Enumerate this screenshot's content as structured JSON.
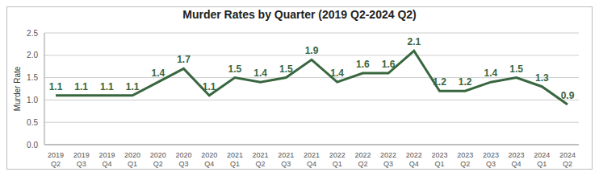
{
  "chart_data": {
    "type": "line",
    "title": "Murder Rates by Quarter (2019 Q2-2024 Q2)",
    "y_label": "Murder Rate",
    "categories": [
      "2019 Q2",
      "2019 Q3",
      "2019 Q4",
      "2020 Q1",
      "2020 Q2",
      "2020 Q3",
      "2020 Q4",
      "2021 Q1",
      "2021 Q2",
      "2021 Q3",
      "2021 Q4",
      "2022 Q1",
      "2022 Q2",
      "2022 Q3",
      "2022 Q4",
      "2023 Q1",
      "2023 Q2",
      "2023 Q3",
      "2023 Q4",
      "2024 Q1",
      "2024 Q2"
    ],
    "values": [
      1.1,
      1.1,
      1.1,
      1.1,
      1.4,
      1.7,
      1.1,
      1.5,
      1.4,
      1.5,
      1.9,
      1.4,
      1.6,
      1.6,
      2.1,
      1.2,
      1.2,
      1.4,
      1.5,
      1.3,
      0.9
    ],
    "color": "#38663f",
    "ylim": [
      0,
      2.5
    ],
    "yticks": [
      {
        "value": 0,
        "label": "0.0"
      },
      {
        "value": 0.5,
        "label": "0.5"
      },
      {
        "value": 1,
        "label": "1.0"
      },
      {
        "value": 1.5,
        "label": "1.5"
      },
      {
        "value": 2,
        "label": "2.0"
      },
      {
        "value": 2.5,
        "label": "2.5"
      }
    ],
    "grid": true,
    "data_labels": true
  }
}
